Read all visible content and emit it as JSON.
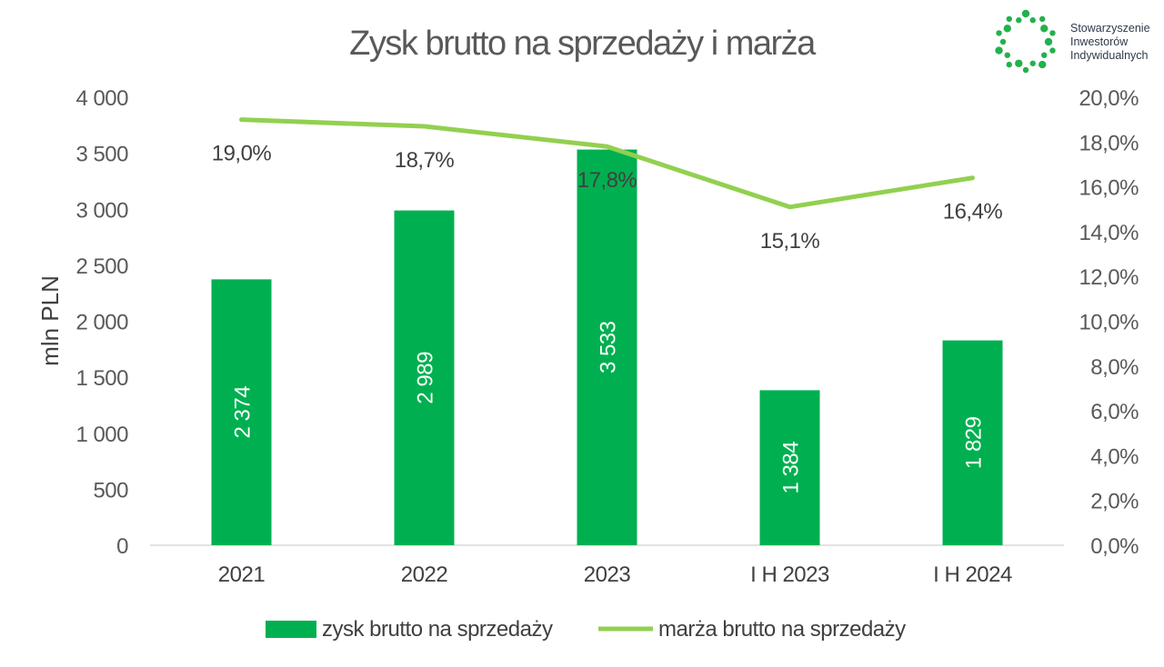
{
  "colors": {
    "bar": "#00b050",
    "line": "#92d050",
    "logo": "#22b14c"
  },
  "logo": {
    "icon": "ring-of-dots-icon",
    "lines": [
      "Stowarzyszenie",
      "Inwestorów",
      "Indywidualnych"
    ]
  },
  "chart_data": {
    "type": "bar",
    "title": "Zysk brutto na sprzedaży i marża",
    "categories": [
      "2021",
      "2022",
      "2023",
      "I H 2023",
      "I H 2024"
    ],
    "ylabel": "mln PLN",
    "ylim": [
      0,
      4000
    ],
    "y_ticks": [
      "0",
      "500",
      "1 000",
      "1 500",
      "2 000",
      "2 500",
      "3 000",
      "3 500",
      "4 000"
    ],
    "y2lim": [
      0,
      20
    ],
    "y2_ticks": [
      "0,0%",
      "2,0%",
      "4,0%",
      "6,0%",
      "8,0%",
      "10,0%",
      "12,0%",
      "14,0%",
      "16,0%",
      "18,0%",
      "20,0%"
    ],
    "grid": false,
    "legend_position": "bottom",
    "series": [
      {
        "name": "zysk brutto na sprzedaży",
        "type": "bar",
        "axis": "left",
        "values": [
          2374,
          2989,
          3533,
          1384,
          1829
        ],
        "labels": [
          "2 374",
          "2 989",
          "3 533",
          "1 384",
          "1 829"
        ]
      },
      {
        "name": "marża brutto na sprzedaży",
        "type": "line",
        "axis": "right",
        "values": [
          19.0,
          18.7,
          17.8,
          15.1,
          16.4
        ],
        "labels": [
          "19,0%",
          "18,7%",
          "17,8%",
          "15,1%",
          "16,4%"
        ]
      }
    ]
  }
}
